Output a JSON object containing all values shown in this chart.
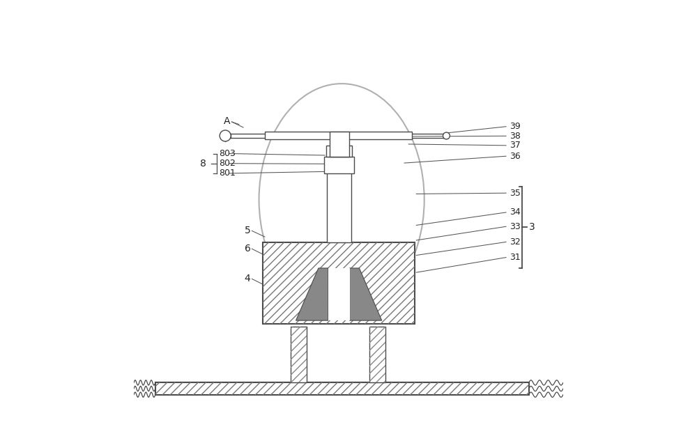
{
  "bg_color": "#ffffff",
  "line_color": "#4a4a4a",
  "label_color": "#222222",
  "label_fontsize": 10,
  "label_fontsize_small": 9,
  "fig_width": 10.0,
  "fig_height": 6.16,
  "dpi": 100
}
